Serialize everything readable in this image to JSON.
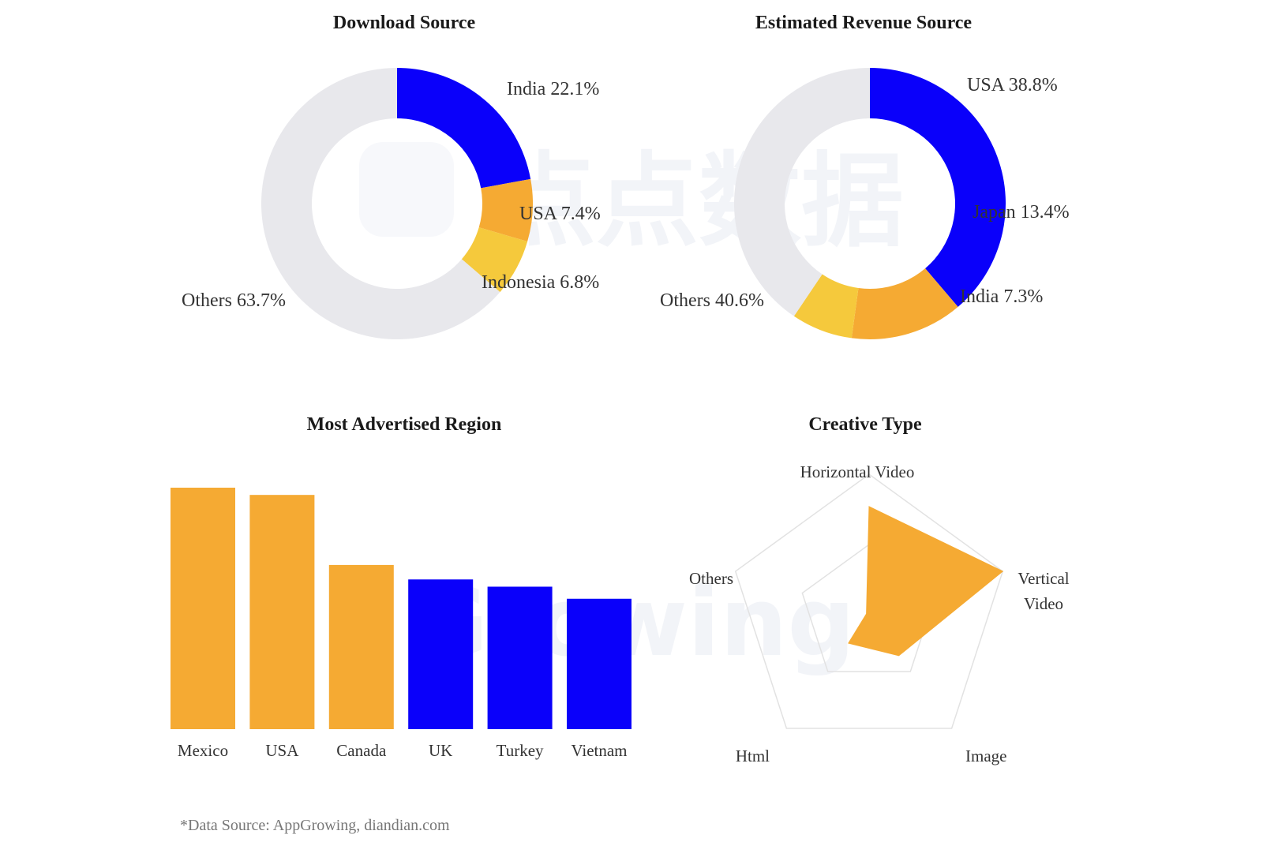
{
  "colors": {
    "blue": "#0a00fa",
    "orange": "#f5aa33",
    "yellow": "#f5c93c",
    "gray": "#e8e8ec",
    "grid": "#e2e2e2"
  },
  "chart_data": [
    {
      "type": "pie",
      "variant": "donut",
      "title": "Download Source",
      "slices": [
        {
          "label": "India 22.1%",
          "name": "India",
          "value": 22.1,
          "color": "#0a00fa"
        },
        {
          "label": "USA 7.4%",
          "name": "USA",
          "value": 7.4,
          "color": "#f5aa33"
        },
        {
          "label": "Indonesia 6.8%",
          "name": "Indonesia",
          "value": 6.8,
          "color": "#f5c93c"
        },
        {
          "label": "Others 63.7%",
          "name": "Others",
          "value": 63.7,
          "color": "#e8e8ec"
        }
      ]
    },
    {
      "type": "pie",
      "variant": "donut",
      "title": "Estimated Revenue Source",
      "slices": [
        {
          "label": "USA 38.8%",
          "name": "USA",
          "value": 38.8,
          "color": "#0a00fa"
        },
        {
          "label": "Japan 13.4%",
          "name": "Japan",
          "value": 13.4,
          "color": "#f5aa33"
        },
        {
          "label": "India 7.3%",
          "name": "India",
          "value": 7.3,
          "color": "#f5c93c"
        },
        {
          "label": "Others 40.6%",
          "name": "Others",
          "value": 40.6,
          "color": "#e8e8ec"
        }
      ]
    },
    {
      "type": "bar",
      "title": "Most Advertised Region",
      "categories": [
        "Mexico",
        "USA",
        "Canada",
        "UK",
        "Turkey",
        "Vietnam"
      ],
      "values": [
        100,
        97,
        68,
        62,
        59,
        54
      ],
      "colors": [
        "#f5aa33",
        "#f5aa33",
        "#f5aa33",
        "#0a00fa",
        "#0a00fa",
        "#0a00fa"
      ],
      "ylim": [
        0,
        100
      ],
      "grid": false
    },
    {
      "type": "radar",
      "title": "Creative Type",
      "axes": [
        {
          "label": [
            "Horizontal Video"
          ],
          "value": 0.77
        },
        {
          "label": [
            "Vertical",
            "Video"
          ],
          "value": 1.0
        },
        {
          "label": [
            "Image"
          ],
          "value": 0.36
        },
        {
          "label": [
            "Html"
          ],
          "value": 0.25
        },
        {
          "label": [
            "Others"
          ],
          "value": 0.02
        }
      ],
      "rings": 2,
      "color": "#f5aa33"
    }
  ],
  "footer": "*Data Source: AppGrowing, diandian.com"
}
